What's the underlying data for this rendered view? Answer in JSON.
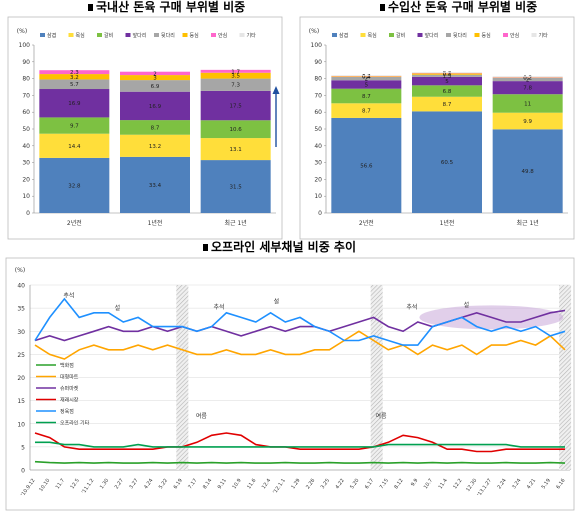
{
  "chart_data": [
    {
      "type": "bar",
      "stacked": true,
      "title": "국내산 돈육 구매 부위별 비중",
      "ylabel": "(%)",
      "ylim": [
        0,
        100
      ],
      "yticks": [
        "0",
        "10",
        "20",
        "30",
        "40",
        "50",
        "60",
        "70",
        "80",
        "90",
        "100"
      ],
      "categories": [
        "2년전",
        "1년전",
        "최근 1년"
      ],
      "legend": [
        "삼겹",
        "목심",
        "갈비",
        "앞다리",
        "뒷다리",
        "등심",
        "안심",
        "기타"
      ],
      "colors": [
        "#4f81bd",
        "#ffde3a",
        "#7dc142",
        "#7030a0",
        "#a6a6a6",
        "#ffc000",
        "#ff66cc",
        "#e6e6e6"
      ],
      "series": [
        {
          "name": "삼겹",
          "values": [
            32.8,
            33.4,
            31.5
          ]
        },
        {
          "name": "목심",
          "values": [
            14.4,
            13.2,
            13.1
          ]
        },
        {
          "name": "갈비",
          "values": [
            9.7,
            8.7,
            10.6
          ]
        },
        {
          "name": "앞다리",
          "values": [
            16.9,
            16.9,
            17.5
          ]
        },
        {
          "name": "뒷다리",
          "values": [
            5.7,
            6.9,
            7.3
          ]
        },
        {
          "name": "등심",
          "values": [
            3.2,
            3,
            3.5
          ]
        },
        {
          "name": "안심",
          "values": [
            2.3,
            2,
            1.7
          ]
        },
        {
          "name": "기타",
          "values": [
            0,
            0,
            0
          ]
        }
      ],
      "labels": [
        [
          "32.8",
          "14.4",
          "9.7",
          "16.9",
          "5.7",
          "3.2",
          "2.3"
        ],
        [
          "33.4",
          "13.2",
          "8.7",
          "16.9",
          "6.9",
          "3",
          "2"
        ],
        [
          "31.5",
          "13.1",
          "10.6",
          "17.5",
          "7.3",
          "3.5",
          "1.7"
        ]
      ],
      "arrow": true
    },
    {
      "type": "bar",
      "stacked": true,
      "title": "수입산 돈육 구매 부위별 비중",
      "ylabel": "(%)",
      "ylim": [
        0,
        100
      ],
      "yticks": [
        "0",
        "10",
        "20",
        "30",
        "40",
        "50",
        "60",
        "70",
        "80",
        "90",
        "100"
      ],
      "categories": [
        "2년전",
        "1년전",
        "최근 1년"
      ],
      "legend": [
        "삼겹",
        "목심",
        "갈비",
        "앞다리",
        "뒷다리",
        "등심",
        "안심",
        "기타"
      ],
      "colors": [
        "#4f81bd",
        "#ffde3a",
        "#7dc142",
        "#7030a0",
        "#a6a6a6",
        "#ffc000",
        "#ff66cc",
        "#e6e6e6"
      ],
      "series": [
        {
          "name": "삼겹",
          "values": [
            56.6,
            60.5,
            49.8
          ]
        },
        {
          "name": "목심",
          "values": [
            8.7,
            8.7,
            9.9
          ]
        },
        {
          "name": "갈비",
          "values": [
            8.7,
            6.8,
            11
          ]
        },
        {
          "name": "앞다리",
          "values": [
            5,
            5,
            7.8
          ]
        },
        {
          "name": "뒷다리",
          "values": [
            2,
            1.3,
            2
          ]
        },
        {
          "name": "등심",
          "values": [
            0.4,
            0.8,
            0.2
          ]
        },
        {
          "name": "안심",
          "values": [
            0.2,
            0.2,
            0.2
          ]
        },
        {
          "name": "기타",
          "values": [
            0.4,
            0.5,
            0.5
          ]
        }
      ],
      "labels": [
        [
          "56.6",
          "8.7",
          "8.7",
          "5",
          "2",
          "0.4",
          "0.2",
          ""
        ],
        [
          "60.5",
          "8.7",
          "6.8",
          "5",
          "1.3",
          "0.8",
          "0.2",
          ""
        ],
        [
          "49.8",
          "9.9",
          "11",
          "7.8",
          "2",
          "0.2",
          "0.2",
          ""
        ]
      ]
    },
    {
      "type": "line",
      "title": "오프라인 세부채널 비중 추이",
      "ylabel": "(%)",
      "ylim": [
        0,
        40
      ],
      "yticks": [
        "0",
        "5",
        "10",
        "15",
        "20",
        "25",
        "30",
        "35",
        "40"
      ],
      "x": [
        "'10.9.12",
        "10.10",
        "11.7",
        "12.5",
        "'11.1.2",
        "1.30",
        "2.27",
        "3.27",
        "4.24",
        "5.22",
        "6.19",
        "7.17",
        "8.14",
        "9.11",
        "10.9",
        "11.6",
        "12.4",
        "'12.1.1",
        "1.29",
        "2.26",
        "3.25",
        "4.22",
        "5.20",
        "6.17",
        "7.15",
        "8.12",
        "9.9",
        "10.7",
        "11.4",
        "12.2",
        "12.30",
        "'13.1.27",
        "2.24",
        "3.24",
        "4.21",
        "5.19",
        "6.16"
      ],
      "legend": [
        "백화점",
        "대형마트",
        "슈퍼마켓",
        "재래시장",
        "정육점",
        "오프라인 기타"
      ],
      "annotations": {
        "chuseok": "추석",
        "seol": "설",
        "summer": "여름"
      },
      "series": [
        {
          "name": "백화점",
          "color": "#2aa02a",
          "values": [
            1.8,
            1.6,
            1.5,
            1.6,
            1.5,
            1.6,
            1.5,
            1.5,
            1.6,
            1.5,
            1.6,
            1.5,
            1.6,
            1.5,
            1.6,
            1.5,
            1.5,
            1.6,
            1.5,
            1.5,
            1.6,
            1.5,
            1.5,
            1.6,
            1.5,
            1.6,
            1.5,
            1.6,
            1.5,
            1.6,
            1.5,
            1.5,
            1.6,
            1.5,
            1.5,
            1.6,
            1.5
          ]
        },
        {
          "name": "대형마트",
          "color": "#ffa500",
          "values": [
            27,
            25,
            24,
            26,
            27,
            26,
            26,
            27,
            26,
            27,
            26,
            25,
            25,
            26,
            25,
            25,
            26,
            25,
            25,
            26,
            26,
            28,
            30,
            28,
            26,
            27,
            25,
            27,
            26,
            27,
            25,
            27,
            27,
            28,
            27,
            29,
            26
          ]
        },
        {
          "name": "슈퍼마켓",
          "color": "#7030a0",
          "values": [
            28,
            29,
            28,
            29,
            30,
            31,
            30,
            30,
            31,
            30,
            31,
            30,
            31,
            30,
            29,
            30,
            31,
            30,
            31,
            31,
            30,
            31,
            32,
            33,
            31,
            30,
            32,
            31,
            32,
            33,
            34,
            33,
            32,
            32,
            33,
            34,
            34.5
          ]
        },
        {
          "name": "재래시장",
          "color": "#e00000",
          "values": [
            8,
            7,
            5,
            4.5,
            4.5,
            4.5,
            4.5,
            4.5,
            4.5,
            5,
            5,
            6,
            7.5,
            8,
            7.5,
            5.5,
            5,
            5,
            4.5,
            4.5,
            4.5,
            4.5,
            4.5,
            5,
            6,
            7.5,
            7,
            6,
            4.5,
            4.5,
            4,
            4,
            4.5,
            4.5,
            4.5,
            4.5,
            4.5
          ]
        },
        {
          "name": "정육점",
          "color": "#1e90ff",
          "values": [
            28,
            33,
            37,
            33,
            34,
            34,
            32,
            33,
            31,
            31,
            31,
            30,
            31,
            34,
            33,
            32,
            34,
            32,
            33,
            31,
            30,
            28,
            28,
            29,
            28,
            27,
            27,
            31,
            32,
            33,
            31,
            30,
            31,
            30,
            31,
            29,
            30
          ]
        },
        {
          "name": "오프라인 기타",
          "color": "#00a050",
          "values": [
            6,
            6,
            5.5,
            5.5,
            5,
            5,
            5,
            5.5,
            5,
            5,
            5,
            5,
            5,
            5,
            5,
            5,
            5,
            5,
            5,
            5,
            5,
            5,
            5,
            5,
            5.5,
            5.5,
            5.5,
            5.5,
            5.5,
            5.5,
            5.5,
            5.5,
            5.5,
            5,
            5,
            5,
            5
          ]
        }
      ]
    }
  ]
}
